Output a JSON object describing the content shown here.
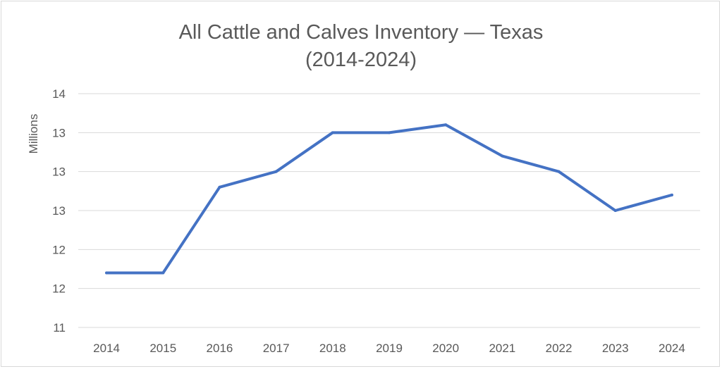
{
  "chart_data": {
    "type": "line",
    "title_line1": "All Cattle and Calves Inventory — Texas",
    "title_line2": "(2014-2024)",
    "xlabel": "",
    "ylabel": "Millions",
    "x": [
      "2014",
      "2015",
      "2016",
      "2017",
      "2018",
      "2019",
      "2020",
      "2021",
      "2022",
      "2023",
      "2024"
    ],
    "values": [
      11.7,
      11.7,
      12.8,
      13.0,
      13.5,
      13.5,
      13.6,
      13.2,
      13.0,
      12.5,
      12.7
    ],
    "ylim": [
      11.0,
      14.0
    ],
    "ytick_values": [
      11.0,
      11.5,
      12.0,
      12.5,
      13.0,
      13.5,
      14.0
    ],
    "ytick_labels": [
      "11",
      "12",
      "12",
      "13",
      "13",
      "13",
      "14"
    ],
    "grid": true,
    "line_color": "#4472c4",
    "grid_color": "#d9d9d9",
    "legend": "none"
  }
}
